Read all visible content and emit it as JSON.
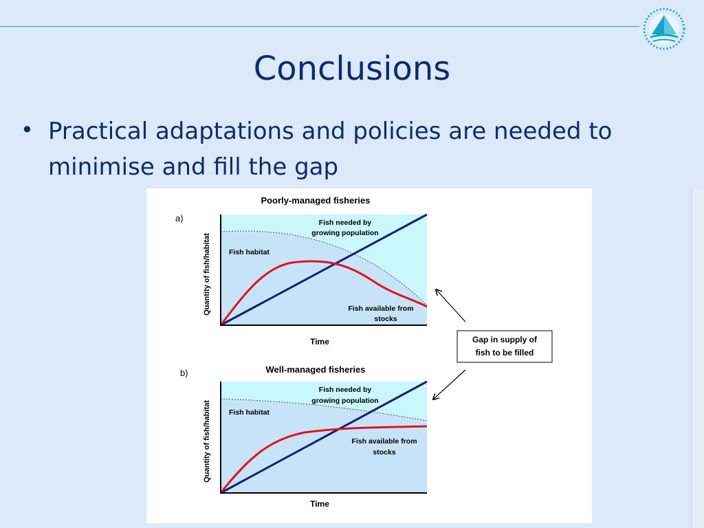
{
  "slide": {
    "title": "Conclusions",
    "bullet": "Practical adaptations and policies are needed to minimise and fill the gap"
  },
  "logo": {
    "icon": "sailboat-circle-logo-icon",
    "color": "#1aa3c9"
  },
  "figure": {
    "gap_box_lines": [
      "Gap in supply of",
      "fish to be filled"
    ],
    "panels": [
      {
        "letter": "a)",
        "title": "Poorly-managed fisheries",
        "ylabel": "Quantity of fish/habitat",
        "xlabel": "Time",
        "labels": {
          "needed_line1": "Fish needed by",
          "needed_line2": "growing population",
          "habitat": "Fish habitat",
          "available_line1": "Fish available from",
          "available_line2": "stocks"
        }
      },
      {
        "letter": "b)",
        "title": "Well-managed fisheries",
        "ylabel": "Quantity of fish/habitat",
        "xlabel": "Time",
        "labels": {
          "needed_line1": "Fish needed by",
          "needed_line2": "growing population",
          "habitat": "Fish habitat",
          "available_line1": "Fish available from",
          "available_line2": "stocks"
        }
      }
    ],
    "colors": {
      "needed_line": "#0d1f7a",
      "available_line": "#e0141a",
      "habitat_fill": "#c7e3f8",
      "upper_fill": "#c9f7fb"
    }
  }
}
